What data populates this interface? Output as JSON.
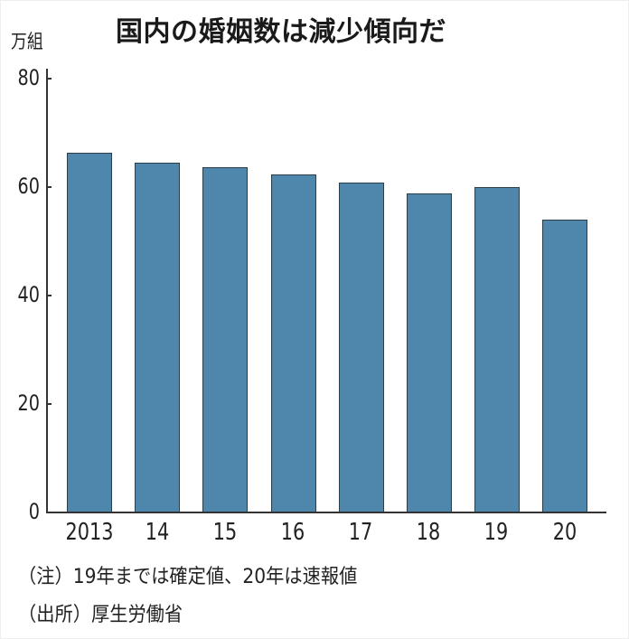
{
  "chart_data": {
    "type": "bar",
    "title": "国内の婚姻数は減少傾向だ",
    "ylabel": "万組",
    "xlabel": "",
    "categories": [
      "2013",
      "14",
      "15",
      "16",
      "17",
      "18",
      "19",
      "20"
    ],
    "values": [
      66.1,
      64.3,
      63.5,
      62.1,
      60.7,
      58.6,
      59.9,
      53.8
    ],
    "ylim": [
      0,
      80
    ],
    "yticks": [
      "0",
      "20",
      "40",
      "60",
      "80"
    ],
    "grid": false,
    "legend": null,
    "bar_color": "#4f87ac",
    "annotations": [
      "（注）19年までは確定値、20年は速報値",
      "（出所）厚生労働省"
    ]
  },
  "header": {
    "title": "国内の婚姻数は減少傾向だ",
    "unit": "万組"
  },
  "axis": {
    "y_ticks": [
      "80",
      "60",
      "40",
      "20",
      "0"
    ],
    "x_labels": [
      "2013",
      "14",
      "15",
      "16",
      "17",
      "18",
      "19",
      "20"
    ]
  },
  "footer": {
    "note": "（注）19年までは確定値、20年は速報値",
    "source": "（出所）厚生労働省"
  }
}
